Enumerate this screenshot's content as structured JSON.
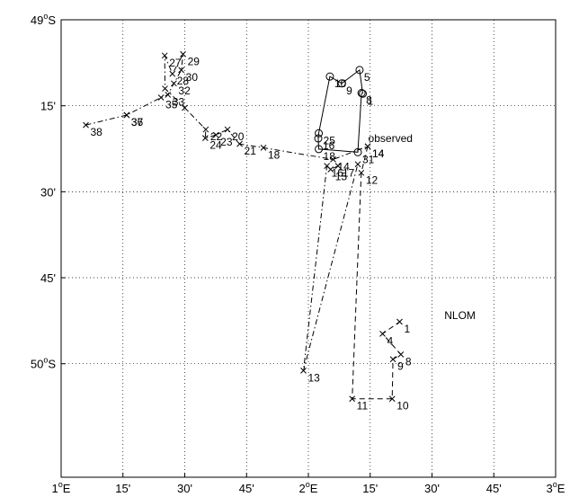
{
  "chart_data": {
    "type": "line",
    "title": "",
    "xlabel": "",
    "ylabel": "",
    "xlim": [
      1.0,
      3.0
    ],
    "ylim": [
      -50.33,
      -49.0
    ],
    "grid": true,
    "x_ticks": [
      {
        "value": 1.0,
        "label": "1",
        "sup": "o",
        "suffix": "E"
      },
      {
        "value": 1.25,
        "label": "15'"
      },
      {
        "value": 1.5,
        "label": "30'"
      },
      {
        "value": 1.75,
        "label": "45'"
      },
      {
        "value": 2.0,
        "label": "2",
        "sup": "o",
        "suffix": "E"
      },
      {
        "value": 2.25,
        "label": "15'"
      },
      {
        "value": 2.5,
        "label": "30'"
      },
      {
        "value": 2.75,
        "label": "45'"
      },
      {
        "value": 3.0,
        "label": "3",
        "sup": "o",
        "suffix": "E"
      }
    ],
    "y_ticks": [
      {
        "value": -49.0,
        "label": "49",
        "sup": "o",
        "suffix": "S"
      },
      {
        "value": -49.25,
        "label": "15'"
      },
      {
        "value": -49.5,
        "label": "30'"
      },
      {
        "value": -49.75,
        "label": "45'"
      },
      {
        "value": -50.0,
        "label": "50",
        "sup": "o",
        "suffix": "S"
      }
    ],
    "series": [
      {
        "name": "observed",
        "style": "solid",
        "marker": "o",
        "points": [
          {
            "x": 2.22,
            "y": -49.215,
            "label": "1"
          },
          {
            "x": 2.207,
            "y": -49.146,
            "label": "5"
          },
          {
            "x": 2.135,
            "y": -49.185,
            "label": "9"
          },
          {
            "x": 2.087,
            "y": -49.165,
            "label": "10"
          },
          {
            "x": 2.042,
            "y": -49.33,
            "label": "25"
          },
          {
            "x": 2.04,
            "y": -49.345,
            "label": "16"
          },
          {
            "x": 2.042,
            "y": -49.376,
            "label": "18"
          },
          {
            "x": 2.2,
            "y": -49.385,
            "label": "31"
          },
          {
            "x": 2.215,
            "y": -49.213,
            "label": "8"
          }
        ],
        "label_anchor": {
          "x": 2.242,
          "y": -49.355,
          "label": "observed"
        }
      },
      {
        "name": "",
        "style": "dashdot",
        "marker": "x",
        "points": [
          {
            "x": 1.1,
            "y": -49.306,
            "label": "38"
          },
          {
            "x": 1.265,
            "y": -49.277,
            "label": "37"
          },
          {
            "x": 1.265,
            "y": -49.277,
            "label": "36"
          },
          {
            "x": 1.404,
            "y": -49.226,
            "label": "35"
          },
          {
            "x": 1.432,
            "y": -49.218,
            "label": "33"
          },
          {
            "x": 1.456,
            "y": -49.185,
            "label": "32"
          },
          {
            "x": 1.486,
            "y": -49.146,
            "label": "30"
          },
          {
            "x": 1.493,
            "y": -49.1,
            "label": "29"
          },
          {
            "x": 1.45,
            "y": -49.157,
            "label": "28"
          },
          {
            "x": 1.419,
            "y": -49.104,
            "label": "27"
          },
          {
            "x": 1.42,
            "y": -49.2,
            "label": ""
          },
          {
            "x": 1.5,
            "y": -49.256,
            "label": ""
          },
          {
            "x": 1.585,
            "y": -49.319,
            "label": "22"
          },
          {
            "x": 1.583,
            "y": -49.344,
            "label": "24"
          },
          {
            "x": 1.626,
            "y": -49.335,
            "label": "23"
          },
          {
            "x": 1.673,
            "y": -49.319,
            "label": "20"
          },
          {
            "x": 1.722,
            "y": -49.361,
            "label": "21"
          },
          {
            "x": 1.818,
            "y": -49.372,
            "label": "18"
          },
          {
            "x": 2.1,
            "y": -49.406,
            "label": "14"
          },
          {
            "x": 2.24,
            "y": -49.368,
            "label": "14"
          }
        ]
      },
      {
        "name": "NLOM",
        "style": "dashed",
        "marker": "x",
        "points": [
          {
            "x": 2.24,
            "y": -49.368,
            "label": "14"
          },
          {
            "x": 2.214,
            "y": -49.445,
            "label": "12"
          },
          {
            "x": 2.177,
            "y": -50.102,
            "label": "11"
          },
          {
            "x": 2.339,
            "y": -50.102,
            "label": "10"
          },
          {
            "x": 2.342,
            "y": -49.987,
            "label": "9"
          },
          {
            "x": 2.374,
            "y": -49.973,
            "label": "8"
          },
          {
            "x": 2.3,
            "y": -49.913,
            "label": "4"
          },
          {
            "x": 2.369,
            "y": -49.878,
            "label": "1"
          }
        ],
        "label_anchor": {
          "x": 2.55,
          "y": -49.87,
          "label": "NLOM"
        }
      },
      {
        "name": "",
        "style": "dashdot",
        "marker": "x",
        "points": [
          {
            "x": 2.12,
            "y": -49.425,
            "label": "17"
          },
          {
            "x": 2.09,
            "y": -49.435,
            "label": "15"
          },
          {
            "x": 2.075,
            "y": -49.425,
            "label": "16"
          },
          {
            "x": 1.98,
            "y": -50.02,
            "label": "13"
          },
          {
            "x": 2.2,
            "y": -49.42,
            "label": ""
          }
        ]
      }
    ]
  }
}
